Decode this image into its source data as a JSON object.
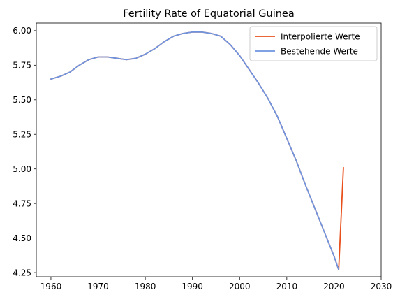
{
  "chart_data": {
    "type": "line",
    "title": "Fertility Rate of Equatorial Guinea",
    "xlabel": "",
    "ylabel": "",
    "xlim": [
      1956.9,
      2030
    ],
    "ylim": [
      4.22,
      6.055
    ],
    "x_ticks": [
      1960,
      1970,
      1980,
      1990,
      2000,
      2010,
      2020,
      2030
    ],
    "y_ticks": [
      4.25,
      4.5,
      4.75,
      5.0,
      5.25,
      5.5,
      5.75,
      6.0
    ],
    "grid": false,
    "legend_position": "top-right",
    "series": [
      {
        "name": "Interpolierte Werte",
        "color": "#e8501b",
        "x": [
          1960,
          1962,
          1964,
          1966,
          1968,
          1970,
          1972,
          1974,
          1976,
          1978,
          1980,
          1982,
          1984,
          1986,
          1988,
          1990,
          1992,
          1994,
          1996,
          1998,
          2000,
          2002,
          2004,
          2006,
          2008,
          2010,
          2012,
          2014,
          2016,
          2018,
          2020,
          2021,
          2022
        ],
        "y": [
          5.65,
          5.67,
          5.7,
          5.75,
          5.79,
          5.81,
          5.81,
          5.8,
          5.79,
          5.8,
          5.83,
          5.87,
          5.92,
          5.96,
          5.98,
          5.99,
          5.99,
          5.98,
          5.96,
          5.9,
          5.82,
          5.72,
          5.62,
          5.51,
          5.38,
          5.22,
          5.06,
          4.88,
          4.71,
          4.54,
          4.37,
          4.27,
          5.01
        ]
      },
      {
        "name": "Bestehende Werte",
        "color": "#6e94e0",
        "x": [
          1960,
          1962,
          1964,
          1966,
          1968,
          1970,
          1972,
          1974,
          1976,
          1978,
          1980,
          1982,
          1984,
          1986,
          1988,
          1990,
          1992,
          1994,
          1996,
          1998,
          2000,
          2002,
          2004,
          2006,
          2008,
          2010,
          2012,
          2014,
          2016,
          2018,
          2020,
          2021
        ],
        "y": [
          5.65,
          5.67,
          5.7,
          5.75,
          5.79,
          5.81,
          5.81,
          5.8,
          5.79,
          5.8,
          5.83,
          5.87,
          5.92,
          5.96,
          5.98,
          5.99,
          5.99,
          5.98,
          5.96,
          5.9,
          5.82,
          5.72,
          5.62,
          5.51,
          5.38,
          5.22,
          5.06,
          4.88,
          4.71,
          4.54,
          4.37,
          4.27
        ]
      }
    ]
  }
}
